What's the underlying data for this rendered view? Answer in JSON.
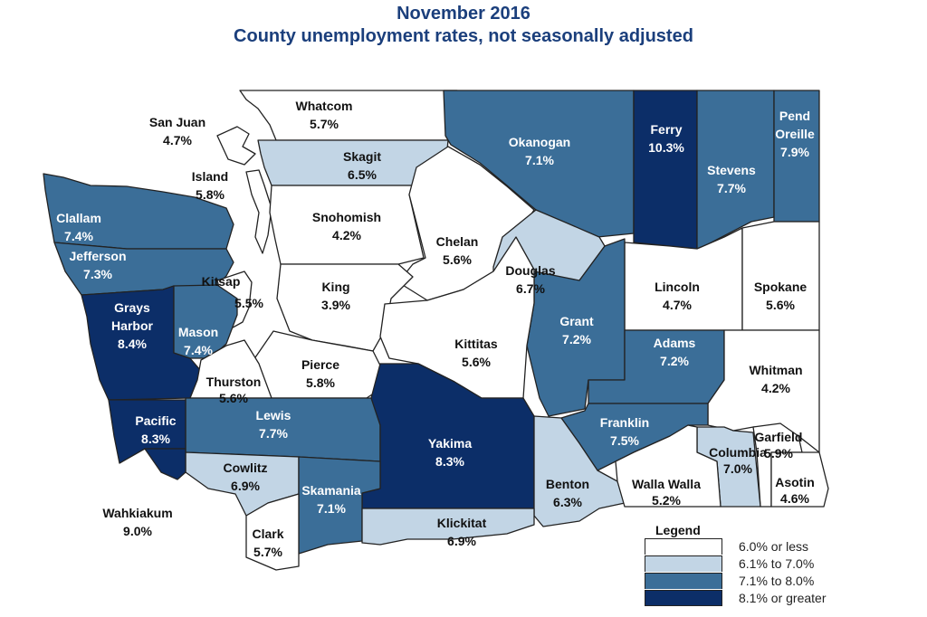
{
  "title": {
    "line1": "November 2016",
    "line2": "County unemployment rates, not seasonally adjusted"
  },
  "colors": {
    "title": "#1b3f7c",
    "cat0": "#ffffff",
    "cat1": "#c2d5e5",
    "cat2": "#3b6e98",
    "cat3": "#0c2e68"
  },
  "counties": [
    {
      "name": "Whatcom",
      "rate": "5.7%",
      "category": 0
    },
    {
      "name": "San Juan",
      "rate": "4.7%",
      "category": 0
    },
    {
      "name": "Skagit",
      "rate": "6.5%",
      "category": 1
    },
    {
      "name": "Island",
      "rate": "5.8%",
      "category": 0
    },
    {
      "name": "Okanogan",
      "rate": "7.1%",
      "category": 2
    },
    {
      "name": "Ferry",
      "rate": "10.3%",
      "category": 3
    },
    {
      "name": "Stevens",
      "rate": "7.7%",
      "category": 2
    },
    {
      "name": "Pend Oreille",
      "rate": "7.9%",
      "category": 2
    },
    {
      "name": "Clallam",
      "rate": "7.4%",
      "category": 2
    },
    {
      "name": "Snohomish",
      "rate": "4.2%",
      "category": 0
    },
    {
      "name": "Chelan",
      "rate": "5.6%",
      "category": 0
    },
    {
      "name": "Jefferson",
      "rate": "7.3%",
      "category": 2
    },
    {
      "name": "Douglas",
      "rate": "6.7%",
      "category": 1
    },
    {
      "name": "Kitsap",
      "rate": "5.5%",
      "category": 0
    },
    {
      "name": "King",
      "rate": "3.9%",
      "category": 0
    },
    {
      "name": "Lincoln",
      "rate": "4.7%",
      "category": 0
    },
    {
      "name": "Spokane",
      "rate": "5.6%",
      "category": 0
    },
    {
      "name": "Grays Harbor",
      "rate": "8.4%",
      "category": 3
    },
    {
      "name": "Mason",
      "rate": "7.4%",
      "category": 2
    },
    {
      "name": "Grant",
      "rate": "7.2%",
      "category": 2
    },
    {
      "name": "Kittitas",
      "rate": "5.6%",
      "category": 0
    },
    {
      "name": "Adams",
      "rate": "7.2%",
      "category": 2
    },
    {
      "name": "Pierce",
      "rate": "5.8%",
      "category": 0
    },
    {
      "name": "Thurston",
      "rate": "5.6%",
      "category": 0
    },
    {
      "name": "Whitman",
      "rate": "4.2%",
      "category": 0
    },
    {
      "name": "Lewis",
      "rate": "7.7%",
      "category": 2
    },
    {
      "name": "Pacific",
      "rate": "8.3%",
      "category": 3
    },
    {
      "name": "Yakima",
      "rate": "8.3%",
      "category": 3
    },
    {
      "name": "Franklin",
      "rate": "7.5%",
      "category": 2
    },
    {
      "name": "Garfield",
      "rate": "5.9%",
      "category": 0
    },
    {
      "name": "Columbia",
      "rate": "7.0%",
      "category": 1
    },
    {
      "name": "Cowlitz",
      "rate": "6.9%",
      "category": 1
    },
    {
      "name": "Benton",
      "rate": "6.3%",
      "category": 1
    },
    {
      "name": "Walla Walla",
      "rate": "5.2%",
      "category": 0
    },
    {
      "name": "Asotin",
      "rate": "4.6%",
      "category": 0
    },
    {
      "name": "Skamania",
      "rate": "7.1%",
      "category": 2
    },
    {
      "name": "Wahkiakum",
      "rate": "9.0%",
      "category": 3
    },
    {
      "name": "Clark",
      "rate": "5.7%",
      "category": 0
    },
    {
      "name": "Klickitat",
      "rate": "6.9%",
      "category": 1
    }
  ],
  "legend": {
    "title": "Legend",
    "items": [
      {
        "label": "6.0% or less",
        "category": 0
      },
      {
        "label": "6.1% to 7.0%",
        "category": 1
      },
      {
        "label": "7.1% to 8.0%",
        "category": 2
      },
      {
        "label": "8.1% or greater",
        "category": 3
      }
    ]
  }
}
